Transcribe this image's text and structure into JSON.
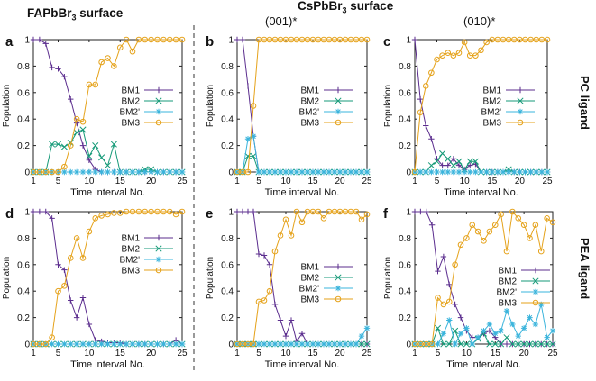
{
  "headers": {
    "left": "FAPbBr",
    "left_sub": "3",
    "left_tail": " surface",
    "mid": "CsPbBr",
    "mid_sub": "3",
    "mid_tail": " surface",
    "sub_b": "(001)*",
    "sub_c": "(010)*"
  },
  "row_labels": {
    "top": "PC ligand",
    "bottom": "PEA ligand"
  },
  "colors": {
    "BM1": "#5b2d8e",
    "BM2": "#169a78",
    "BM2p": "#3ab4dc",
    "BM3": "#e5a21a",
    "divider": "#333333"
  },
  "chart_data": [
    {
      "panel": "a",
      "type": "line",
      "xlabel": "Time interval No.",
      "ylabel": "Population",
      "xlim": [
        1,
        25
      ],
      "ylim": [
        0,
        1
      ],
      "xticks": [
        1,
        5,
        10,
        15,
        20,
        25
      ],
      "yticks": [
        0,
        0.2,
        0.4,
        0.6,
        0.8,
        1
      ],
      "x": [
        1,
        2,
        3,
        4,
        5,
        6,
        7,
        8,
        9,
        10,
        11,
        12,
        13,
        14,
        15,
        16,
        17,
        18,
        19,
        20,
        21,
        22,
        23,
        24,
        25
      ],
      "series": [
        {
          "name": "BM1",
          "marker": "+",
          "values": [
            1,
            1,
            0.97,
            0.79,
            0.78,
            0.72,
            0.55,
            0.37,
            0.2,
            0.09,
            0.02,
            0,
            0,
            0,
            0,
            0,
            0,
            0,
            0,
            0,
            0,
            0,
            0,
            0,
            0
          ]
        },
        {
          "name": "BM2",
          "marker": "x",
          "values": [
            0,
            0,
            0,
            0.21,
            0.21,
            0.19,
            0.22,
            0.3,
            0.32,
            0.12,
            0.2,
            0.11,
            0.05,
            0.21,
            0,
            0,
            0,
            0,
            0.02,
            0.02,
            0,
            0,
            0,
            0,
            0
          ]
        },
        {
          "name": "BM2'",
          "marker": "*",
          "values": [
            0,
            0,
            0,
            0,
            0,
            0,
            0,
            0,
            0,
            0,
            0,
            0,
            0,
            0,
            0,
            0,
            0,
            0,
            0,
            0,
            0,
            0,
            0,
            0,
            0
          ]
        },
        {
          "name": "BM3",
          "marker": "o",
          "values": [
            0,
            0,
            0,
            0,
            0,
            0.04,
            0.2,
            0.4,
            0.38,
            0.66,
            0.66,
            0.83,
            0.86,
            0.8,
            0.94,
            1,
            0.91,
            1,
            1,
            1,
            1,
            1,
            1,
            1,
            1
          ]
        }
      ]
    },
    {
      "panel": "b",
      "type": "line",
      "xlabel": "Time interval No.",
      "ylabel": "Population",
      "xlim": [
        1,
        25
      ],
      "ylim": [
        0,
        1
      ],
      "xticks": [
        1,
        5,
        10,
        15,
        20,
        25
      ],
      "yticks": [
        0,
        0.2,
        0.4,
        0.6,
        0.8,
        1
      ],
      "x": [
        1,
        2,
        3,
        4,
        5,
        6,
        7,
        8,
        9,
        10,
        11,
        12,
        13,
        14,
        15,
        16,
        17,
        18,
        19,
        20,
        21,
        22,
        23,
        24,
        25
      ],
      "series": [
        {
          "name": "BM1",
          "marker": "+",
          "values": [
            1,
            1,
            0.65,
            0.27,
            0,
            0,
            0,
            0,
            0,
            0,
            0,
            0,
            0,
            0,
            0,
            0,
            0,
            0,
            0,
            0,
            0,
            0,
            0,
            0,
            0
          ]
        },
        {
          "name": "BM2",
          "marker": "x",
          "values": [
            0,
            0,
            0.12,
            0.12,
            0,
            0,
            0,
            0,
            0,
            0,
            0,
            0,
            0,
            0,
            0,
            0,
            0,
            0,
            0,
            0,
            0,
            0,
            0,
            0,
            0
          ]
        },
        {
          "name": "BM2'",
          "marker": "*",
          "values": [
            0,
            0,
            0.25,
            0.27,
            0,
            0,
            0,
            0,
            0,
            0,
            0,
            0,
            0,
            0,
            0,
            0,
            0,
            0,
            0,
            0,
            0,
            0,
            0,
            0,
            0
          ]
        },
        {
          "name": "BM3",
          "marker": "o",
          "values": [
            0,
            0,
            0,
            0.5,
            1,
            1,
            1,
            1,
            1,
            1,
            1,
            1,
            1,
            1,
            1,
            1,
            1,
            1,
            1,
            1,
            1,
            1,
            1,
            1,
            1
          ]
        }
      ]
    },
    {
      "panel": "c",
      "type": "line",
      "xlabel": "Time interval No.",
      "ylabel": "Population",
      "xlim": [
        1,
        25
      ],
      "ylim": [
        0,
        1
      ],
      "xticks": [
        1,
        5,
        10,
        15,
        20,
        25
      ],
      "yticks": [
        0,
        0.2,
        0.4,
        0.6,
        0.8,
        1
      ],
      "x": [
        1,
        2,
        3,
        4,
        5,
        6,
        7,
        8,
        9,
        10,
        11,
        12,
        13,
        14,
        15,
        16,
        17,
        18,
        19,
        20,
        21,
        22,
        23,
        24,
        25
      ],
      "series": [
        {
          "name": "BM1",
          "marker": "+",
          "values": [
            1,
            0.55,
            0.35,
            0.25,
            0.1,
            0.05,
            0.05,
            0.1,
            0.05,
            0.02,
            0.05,
            0.06,
            0,
            0,
            0,
            0,
            0,
            0,
            0,
            0,
            0,
            0,
            0,
            0,
            0
          ]
        },
        {
          "name": "BM2",
          "marker": "x",
          "values": [
            0,
            0,
            0,
            0.05,
            0.08,
            0.14,
            0.1,
            0.05,
            0.08,
            0.02,
            0.08,
            0.08,
            0,
            0,
            0,
            0,
            0,
            0.02,
            0,
            0,
            0,
            0,
            0,
            0,
            0
          ]
        },
        {
          "name": "BM2'",
          "marker": "*",
          "values": [
            0,
            0,
            0,
            0,
            0,
            0,
            0,
            0,
            0,
            0,
            0,
            0,
            0,
            0,
            0,
            0,
            0,
            0,
            0,
            0,
            0,
            0,
            0,
            0,
            0
          ]
        },
        {
          "name": "BM3",
          "marker": "o",
          "values": [
            0,
            0.45,
            0.65,
            0.75,
            0.85,
            0.88,
            0.9,
            0.88,
            0.9,
            0.98,
            0.88,
            0.88,
            0.92,
            0.98,
            1,
            1,
            1,
            1,
            1,
            1,
            1,
            1,
            1,
            1,
            1
          ]
        }
      ]
    },
    {
      "panel": "d",
      "type": "line",
      "xlabel": "Time interval No.",
      "ylabel": "Population",
      "xlim": [
        1,
        25
      ],
      "ylim": [
        0,
        1
      ],
      "xticks": [
        1,
        5,
        10,
        15,
        20,
        25
      ],
      "yticks": [
        0,
        0.2,
        0.4,
        0.6,
        0.8,
        1
      ],
      "x": [
        1,
        2,
        3,
        4,
        5,
        6,
        7,
        8,
        9,
        10,
        11,
        12,
        13,
        14,
        15,
        16,
        17,
        18,
        19,
        20,
        21,
        22,
        23,
        24,
        25
      ],
      "series": [
        {
          "name": "BM1",
          "marker": "+",
          "values": [
            1,
            1,
            1,
            0.95,
            0.6,
            0.56,
            0.33,
            0.2,
            0.35,
            0.15,
            0.03,
            0.02,
            0.01,
            0.01,
            0.01,
            0,
            0,
            0,
            0,
            0,
            0,
            0,
            0,
            0.03,
            0
          ]
        },
        {
          "name": "BM2",
          "marker": "x",
          "values": [
            0,
            0,
            0,
            0,
            0,
            0,
            0,
            0,
            0,
            0,
            0,
            0,
            0,
            0,
            0,
            0,
            0,
            0,
            0,
            0,
            0,
            0,
            0,
            0,
            0
          ]
        },
        {
          "name": "BM2'",
          "marker": "*",
          "values": [
            0,
            0,
            0,
            0,
            0,
            0,
            0,
            0,
            0,
            0,
            0,
            0,
            0,
            0,
            0,
            0,
            0,
            0,
            0,
            0,
            0,
            0,
            0,
            0,
            0
          ]
        },
        {
          "name": "BM3",
          "marker": "o",
          "values": [
            0,
            0,
            0,
            0.05,
            0.4,
            0.44,
            0.65,
            0.8,
            0.65,
            0.85,
            0.95,
            0.97,
            0.98,
            0.99,
            0.99,
            1,
            1,
            1,
            1,
            1,
            1,
            1,
            1,
            0.98,
            1
          ]
        }
      ]
    },
    {
      "panel": "e",
      "type": "line",
      "xlabel": "Time interval No.",
      "ylabel": "Population",
      "xlim": [
        1,
        25
      ],
      "ylim": [
        0,
        1
      ],
      "xticks": [
        1,
        5,
        10,
        15,
        20,
        25
      ],
      "yticks": [
        0,
        0.2,
        0.4,
        0.6,
        0.8,
        1
      ],
      "x": [
        1,
        2,
        3,
        4,
        5,
        6,
        7,
        8,
        9,
        10,
        11,
        12,
        13,
        14,
        15,
        16,
        17,
        18,
        19,
        20,
        21,
        22,
        23,
        24,
        25
      ],
      "series": [
        {
          "name": "BM1",
          "marker": "+",
          "values": [
            1,
            1,
            1,
            1,
            0.68,
            0.67,
            0.6,
            0.3,
            0.18,
            0.06,
            0.18,
            0.02,
            0.08,
            0,
            0,
            0,
            0,
            0,
            0,
            0,
            0,
            0,
            0,
            0,
            0
          ]
        },
        {
          "name": "BM2",
          "marker": "x",
          "values": [
            0,
            0,
            0,
            0,
            0,
            0,
            0,
            0,
            0,
            0,
            0,
            0,
            0,
            0,
            0,
            0,
            0,
            0,
            0,
            0,
            0,
            0,
            0,
            0,
            0
          ]
        },
        {
          "name": "BM2'",
          "marker": "*",
          "values": [
            0,
            0,
            0,
            0,
            0,
            0,
            0,
            0,
            0,
            0,
            0,
            0,
            0,
            0,
            0,
            0,
            0,
            0,
            0,
            0,
            0,
            0,
            0,
            0.06,
            0.12
          ]
        },
        {
          "name": "BM3",
          "marker": "o",
          "values": [
            0,
            0,
            0,
            0,
            0.32,
            0.33,
            0.4,
            0.7,
            0.82,
            0.94,
            0.82,
            1,
            0.92,
            1,
            1,
            1,
            0.95,
            1,
            1,
            1,
            1,
            1,
            1,
            0.94,
            0.98
          ]
        }
      ]
    },
    {
      "panel": "f",
      "type": "line",
      "xlabel": "Time interval No.",
      "ylabel": "Population",
      "xlim": [
        1,
        25
      ],
      "ylim": [
        0,
        1
      ],
      "xticks": [
        1,
        5,
        10,
        15,
        20,
        25
      ],
      "yticks": [
        0,
        0.2,
        0.4,
        0.6,
        0.8,
        1
      ],
      "x": [
        1,
        2,
        3,
        4,
        5,
        6,
        7,
        8,
        9,
        10,
        11,
        12,
        13,
        14,
        15,
        16,
        17,
        18,
        19,
        20,
        21,
        22,
        23,
        24,
        25
      ],
      "series": [
        {
          "name": "BM1",
          "marker": "+",
          "values": [
            1,
            1,
            1,
            0.9,
            0.55,
            0.66,
            0.45,
            0.3,
            0.2,
            0.1,
            0.05,
            0.05,
            0.08,
            0.1,
            0.05,
            0,
            0,
            0,
            0,
            0,
            0,
            0,
            0,
            0,
            0
          ]
        },
        {
          "name": "BM2",
          "marker": "x",
          "values": [
            0,
            0,
            0,
            0,
            0.12,
            0,
            0,
            0.1,
            0,
            0,
            0,
            0.04,
            0.08,
            0,
            0,
            0,
            0.05,
            0,
            0,
            0,
            0,
            0,
            0,
            0,
            0
          ]
        },
        {
          "name": "BM2'",
          "marker": "*",
          "values": [
            0,
            0,
            0,
            0,
            0,
            0.08,
            0.18,
            0,
            0.08,
            0.12,
            0,
            0.05,
            0.1,
            0.15,
            0.08,
            0.1,
            0.25,
            0.15,
            0.06,
            0.12,
            0.2,
            0.15,
            0.3,
            0.05,
            0.1
          ]
        },
        {
          "name": "BM3",
          "marker": "o",
          "values": [
            0,
            0,
            0,
            0,
            0.35,
            0.3,
            0.32,
            0.6,
            0.75,
            0.8,
            0.9,
            0.85,
            0.78,
            0.85,
            0.9,
            0.98,
            0.7,
            1,
            0.95,
            0.9,
            0.8,
            0.9,
            0.7,
            0.95,
            0.92
          ]
        }
      ]
    }
  ]
}
